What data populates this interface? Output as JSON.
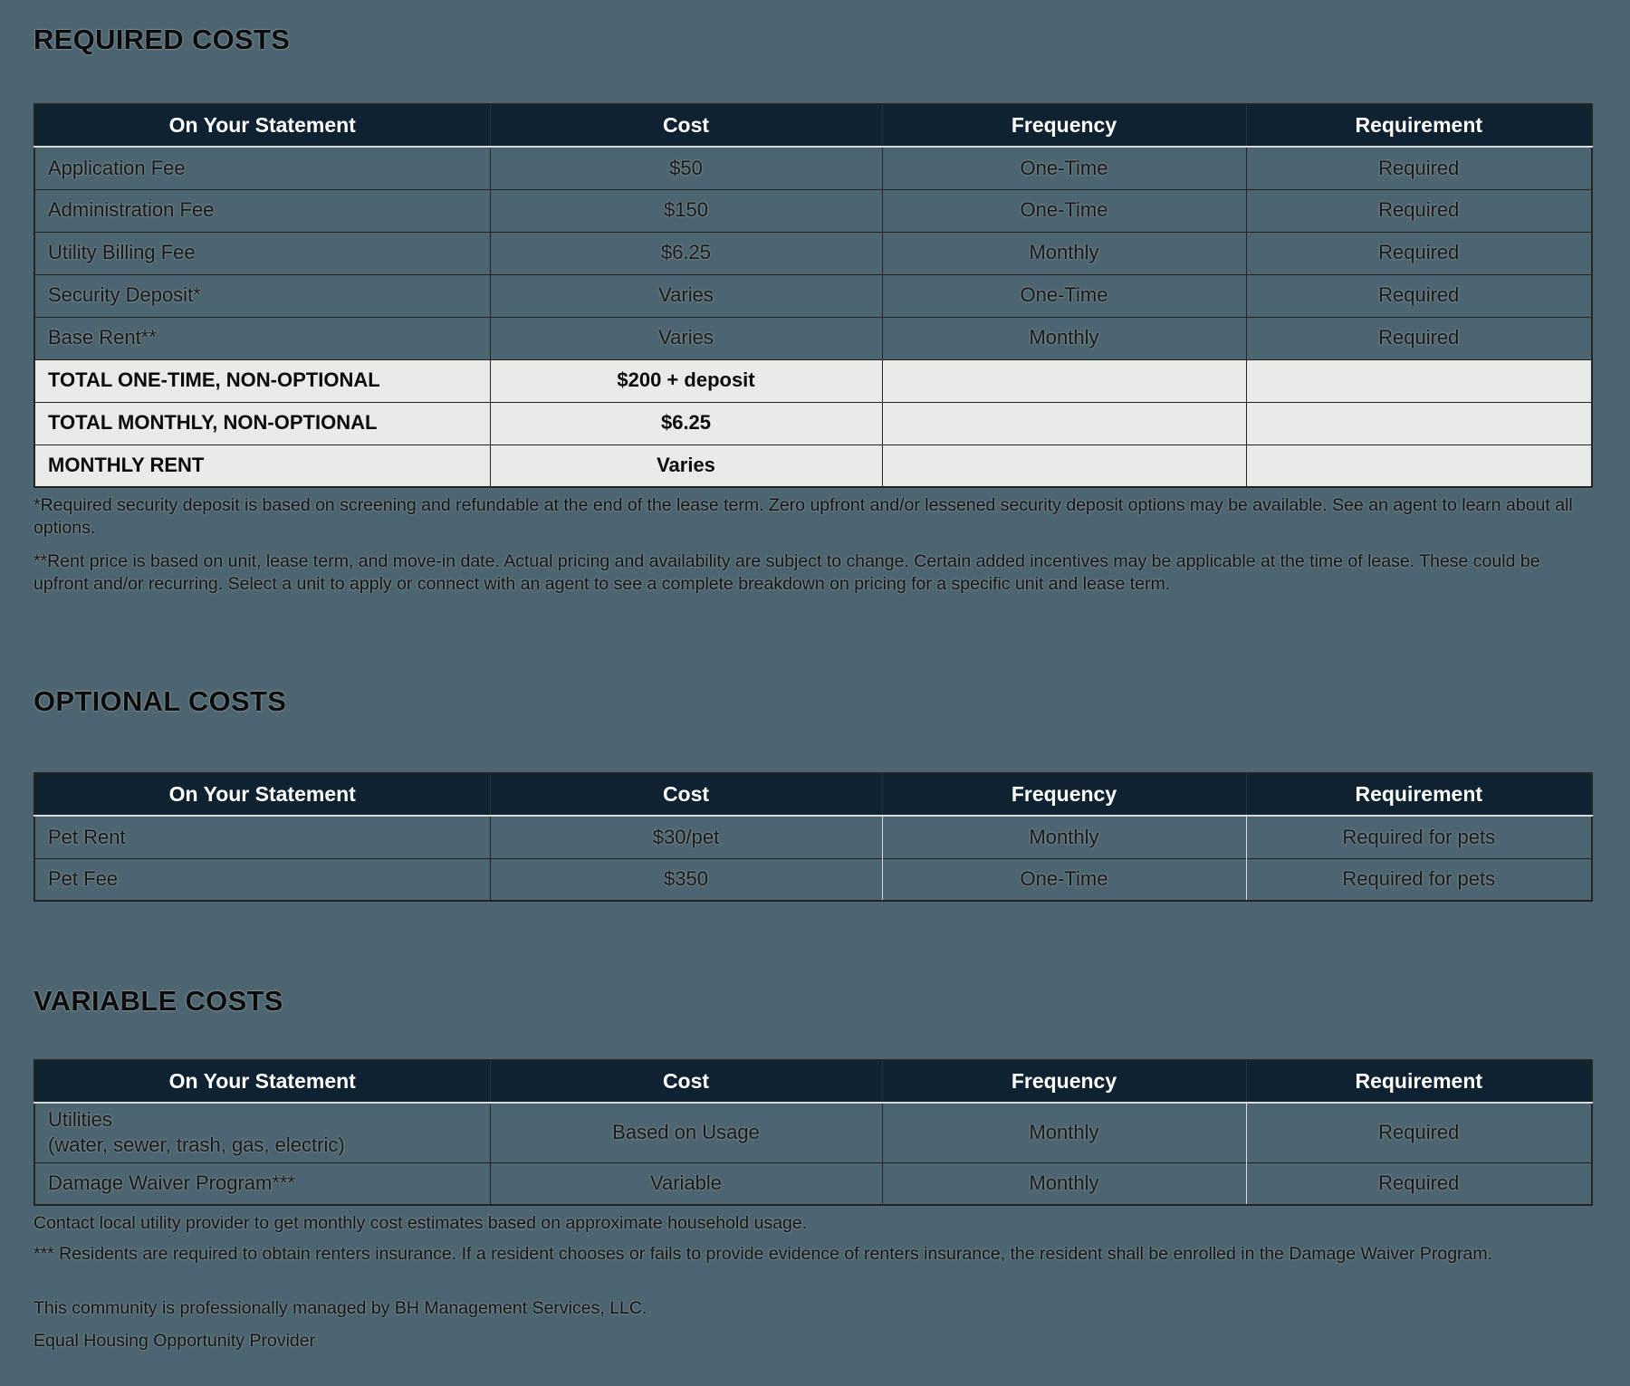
{
  "page": {
    "background_color": "#4d6570",
    "table_header_bg": "#0f2231",
    "table_header_text": "#ffffff",
    "total_row_bg": "#e9ebe9",
    "border_dark": "#242424",
    "border_light": "#d9dddd"
  },
  "sections": [
    {
      "id": "required-costs",
      "title": "REQUIRED COSTS",
      "columns": [
        "On Your Statement",
        "Cost",
        "Frequency",
        "Requirement"
      ],
      "rows": [
        {
          "style": "normal",
          "cells": [
            "Application Fee",
            "$50",
            "One-Time",
            "Required"
          ]
        },
        {
          "style": "normal",
          "cells": [
            "Administration Fee",
            "$150",
            "One-Time",
            "Required"
          ]
        },
        {
          "style": "normal",
          "cells": [
            "Utility Billing Fee",
            "$6.25",
            "Monthly",
            "Required"
          ]
        },
        {
          "style": "normal",
          "cells": [
            "Security Deposit*",
            "Varies",
            "One-Time",
            "Required"
          ]
        },
        {
          "style": "normal",
          "cells": [
            "Base Rent**",
            "Varies",
            "Monthly",
            "Required"
          ]
        },
        {
          "style": "total",
          "cells": [
            "TOTAL ONE-TIME, NON-OPTIONAL",
            "$200 + deposit",
            "",
            ""
          ]
        },
        {
          "style": "total",
          "cells": [
            "TOTAL MONTHLY, NON-OPTIONAL",
            "$6.25",
            "",
            ""
          ]
        },
        {
          "style": "total",
          "cells": [
            "MONTHLY RENT",
            "Varies",
            "",
            ""
          ]
        }
      ],
      "footnotes": [
        "*Required security deposit is based on screening and refundable at the end of the lease term. Zero upfront and/or lessened security deposit options may be available. See an agent to learn about all options.",
        "**Rent price is based on unit, lease term, and move-in date. Actual pricing and availability are subject to change. Certain added incentives may be applicable at the time of lease. These could be upfront and/or recurring. Select a unit to apply or connect with an agent to see a complete breakdown on pricing for a specific unit and lease term."
      ]
    },
    {
      "id": "optional-costs",
      "title": "OPTIONAL COSTS",
      "columns": [
        "On Your Statement",
        "Cost",
        "Frequency",
        "Requirement"
      ],
      "rows": [
        {
          "style": "normal",
          "cells": [
            "Pet Rent",
            "$30/pet",
            "Monthly",
            "Required for pets"
          ]
        },
        {
          "style": "normal",
          "cells": [
            "Pet Fee",
            "$350",
            "One-Time",
            "Required for pets"
          ]
        }
      ],
      "footnotes": []
    },
    {
      "id": "variable-costs",
      "title": "VARIABLE COSTS",
      "columns": [
        "On Your Statement",
        "Cost",
        "Frequency",
        "Requirement"
      ],
      "rows": [
        {
          "style": "normal",
          "cells": [
            "Utilities\n(water, sewer, trash, gas, electric)",
            "Based on Usage",
            "Monthly",
            "Required"
          ]
        },
        {
          "style": "normal",
          "cells": [
            "Damage Waiver Program***",
            "Variable",
            "Monthly",
            "Required"
          ]
        }
      ],
      "footnotes": [
        "Contact local utility provider to get monthly cost estimates based on approximate household usage.",
        "*** Residents are required to obtain renters insurance. If a resident chooses or fails to provide evidence of renters insurance, the resident shall be enrolled in the Damage Waiver Program."
      ]
    }
  ],
  "footer": {
    "managed_by": "This community is professionally managed by BH Management Services, LLC.",
    "equal_housing": "Equal Housing Opportunity Provider"
  }
}
